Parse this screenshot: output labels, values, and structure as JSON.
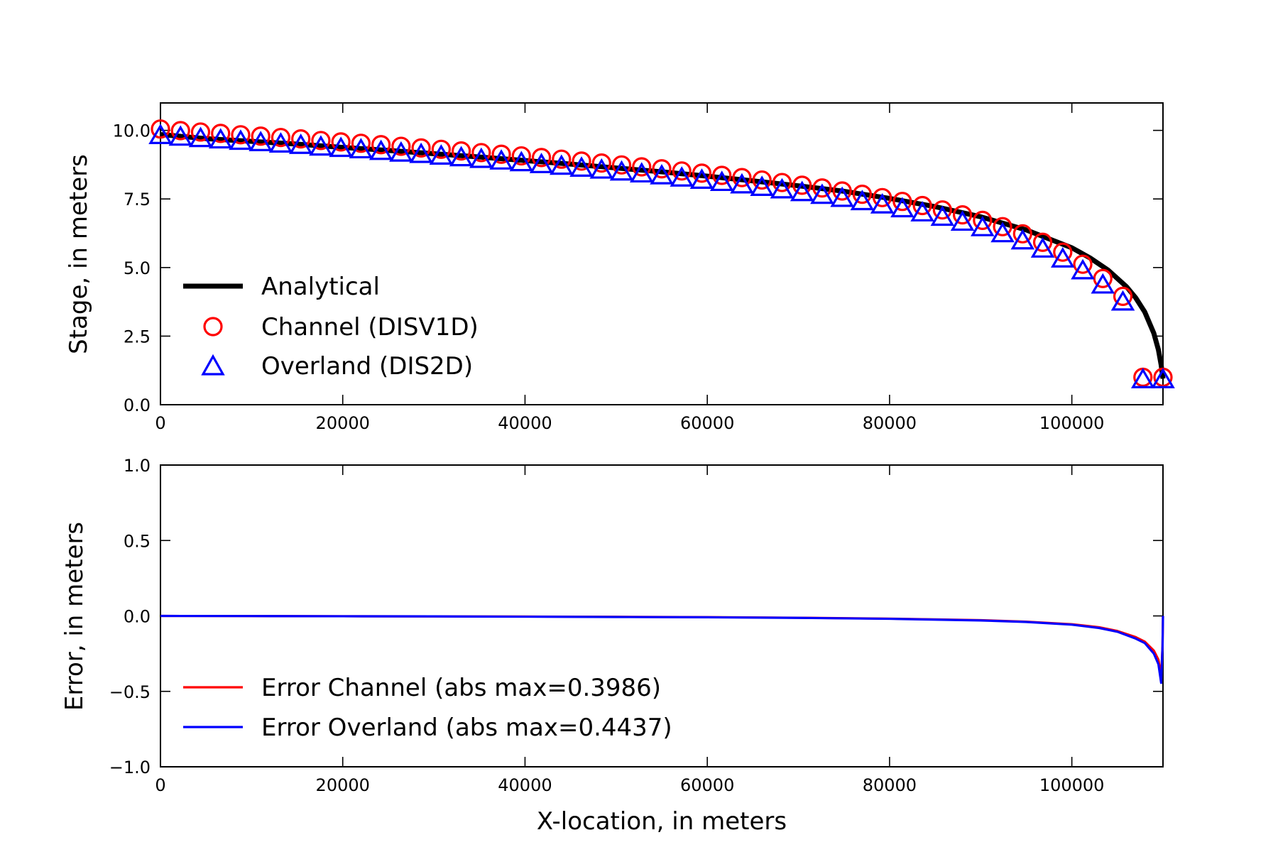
{
  "chart_data": [
    {
      "type": "line",
      "panel": "top",
      "title": "",
      "xlabel": "",
      "ylabel": "Stage, in meters",
      "xlim": [
        0,
        110000
      ],
      "ylim": [
        0,
        11
      ],
      "xticks": [
        0,
        20000,
        40000,
        60000,
        80000,
        100000
      ],
      "xtick_labels": [
        "0",
        "20000",
        "40000",
        "60000",
        "80000",
        "100000"
      ],
      "yticks": [
        0,
        2.5,
        5,
        7.5,
        10
      ],
      "ytick_labels": [
        "0.0",
        "2.5",
        "5.0",
        "7.5",
        "10.0"
      ],
      "grid": false,
      "legend_position": "lower-left",
      "series": [
        {
          "name": "Analytical",
          "kind": "line",
          "color": "#000000",
          "x": [
            0,
            5000,
            10000,
            15000,
            20000,
            25000,
            30000,
            35000,
            40000,
            45000,
            50000,
            55000,
            60000,
            65000,
            70000,
            75000,
            80000,
            85000,
            90000,
            95000,
            100000,
            102000,
            104000,
            106000,
            107000,
            108000,
            109000,
            109500,
            109800,
            110000
          ],
          "y": [
            9.85,
            9.7,
            9.6,
            9.5,
            9.38,
            9.27,
            9.15,
            9.03,
            8.9,
            8.77,
            8.63,
            8.49,
            8.33,
            8.16,
            7.98,
            7.78,
            7.52,
            7.22,
            6.85,
            6.37,
            5.72,
            5.35,
            4.9,
            4.3,
            3.9,
            3.38,
            2.6,
            2.0,
            1.45,
            0.95
          ]
        },
        {
          "name": "Channel (DISV1D)",
          "kind": "marker-circle",
          "color": "#ff0000",
          "x": [
            0,
            2200,
            4400,
            6600,
            8800,
            11000,
            13200,
            15400,
            17600,
            19800,
            22000,
            24200,
            26400,
            28600,
            30800,
            33000,
            35200,
            37400,
            39600,
            41800,
            44000,
            46200,
            48400,
            50600,
            52800,
            55000,
            57200,
            59400,
            61600,
            63800,
            66000,
            68200,
            70400,
            72600,
            74800,
            77000,
            79200,
            81400,
            83600,
            85800,
            88000,
            90200,
            92400,
            94600,
            96800,
            99000,
            101200,
            103400,
            105600,
            107800,
            110000
          ],
          "y": [
            10.05,
            9.99,
            9.94,
            9.89,
            9.84,
            9.79,
            9.74,
            9.69,
            9.63,
            9.58,
            9.53,
            9.48,
            9.42,
            9.36,
            9.31,
            9.25,
            9.19,
            9.13,
            9.07,
            9.01,
            8.95,
            8.88,
            8.81,
            8.74,
            8.67,
            8.6,
            8.52,
            8.44,
            8.36,
            8.28,
            8.19,
            8.1,
            8.0,
            7.9,
            7.79,
            7.67,
            7.55,
            7.41,
            7.26,
            7.1,
            6.92,
            6.72,
            6.49,
            6.23,
            5.92,
            5.56,
            5.12,
            4.6,
            3.95,
            1.0,
            1.0
          ]
        },
        {
          "name": "Overland (DIS2D)",
          "kind": "marker-triangle",
          "color": "#0000ff",
          "x": [
            0,
            2200,
            4400,
            6600,
            8800,
            11000,
            13200,
            15400,
            17600,
            19800,
            22000,
            24200,
            26400,
            28600,
            30800,
            33000,
            35200,
            37400,
            39600,
            41800,
            44000,
            46200,
            48400,
            50600,
            52800,
            55000,
            57200,
            59400,
            61600,
            63800,
            66000,
            68200,
            70400,
            72600,
            74800,
            77000,
            79200,
            81400,
            83600,
            85800,
            88000,
            90200,
            92400,
            94600,
            96800,
            99000,
            101200,
            103400,
            105600,
            107800,
            110000
          ],
          "y": [
            9.8,
            9.74,
            9.69,
            9.64,
            9.59,
            9.54,
            9.49,
            9.44,
            9.38,
            9.33,
            9.28,
            9.22,
            9.16,
            9.11,
            9.05,
            8.99,
            8.93,
            8.87,
            8.81,
            8.74,
            8.68,
            8.61,
            8.54,
            8.47,
            8.4,
            8.33,
            8.25,
            8.17,
            8.09,
            8.0,
            7.91,
            7.82,
            7.72,
            7.62,
            7.51,
            7.39,
            7.27,
            7.13,
            6.98,
            6.82,
            6.64,
            6.44,
            6.22,
            5.96,
            5.66,
            5.3,
            4.87,
            4.35,
            3.73,
            0.9,
            0.9
          ]
        }
      ]
    },
    {
      "type": "line",
      "panel": "bottom",
      "title": "",
      "xlabel": "X-location, in meters",
      "ylabel": "Error, in meters",
      "xlim": [
        0,
        110000
      ],
      "ylim": [
        -1,
        1
      ],
      "xticks": [
        0,
        20000,
        40000,
        60000,
        80000,
        100000
      ],
      "xtick_labels": [
        "0",
        "20000",
        "40000",
        "60000",
        "80000",
        "100000"
      ],
      "yticks": [
        -1,
        -0.5,
        0,
        0.5,
        1
      ],
      "ytick_labels": [
        "−1.0",
        "−0.5",
        "0.0",
        "0.5",
        "1.0"
      ],
      "grid": false,
      "legend_position": "lower-left",
      "series": [
        {
          "name": "Error Channel (abs max=0.3986)",
          "kind": "line",
          "color": "#ff0000",
          "x": [
            0,
            10000,
            20000,
            30000,
            40000,
            50000,
            60000,
            70000,
            80000,
            90000,
            95000,
            100000,
            103000,
            105000,
            107000,
            108000,
            109000,
            109500,
            109800,
            109950,
            110000
          ],
          "y": [
            0.0,
            -0.001,
            -0.002,
            -0.003,
            -0.004,
            -0.006,
            -0.008,
            -0.012,
            -0.018,
            -0.028,
            -0.038,
            -0.055,
            -0.075,
            -0.1,
            -0.14,
            -0.17,
            -0.23,
            -0.29,
            -0.3986,
            -0.2,
            0.0
          ]
        },
        {
          "name": "Error Overland (abs max=0.4437)",
          "kind": "line",
          "color": "#0000ff",
          "x": [
            0,
            10000,
            20000,
            30000,
            40000,
            50000,
            60000,
            70000,
            80000,
            90000,
            95000,
            100000,
            103000,
            105000,
            107000,
            108000,
            109000,
            109500,
            109800,
            109950,
            110000
          ],
          "y": [
            0.0,
            -0.001,
            -0.002,
            -0.003,
            -0.005,
            -0.007,
            -0.009,
            -0.013,
            -0.019,
            -0.03,
            -0.04,
            -0.058,
            -0.08,
            -0.105,
            -0.15,
            -0.18,
            -0.25,
            -0.32,
            -0.4437,
            -0.2,
            0.0
          ]
        }
      ]
    }
  ]
}
